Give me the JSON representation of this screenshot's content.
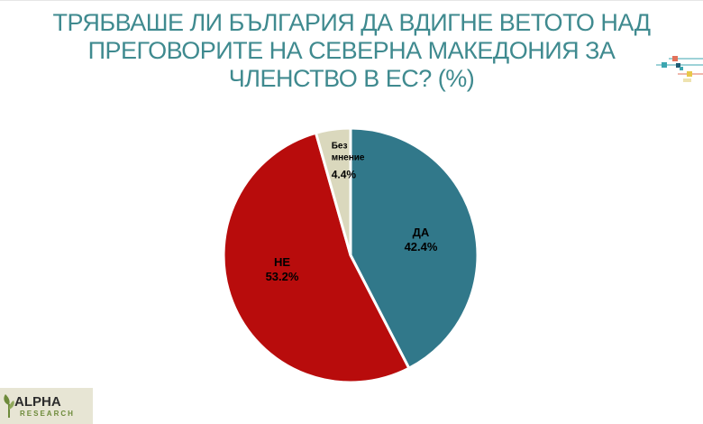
{
  "chart_data": {
    "type": "pie",
    "title": "ТРЯБВАШЕ ЛИ БЪЛГАРИЯ ДА ВДИГНЕ ВЕТОТО НАД ПРЕГОВОРИТЕ НА СЕВЕРНА МАКЕДОНИЯ ЗА ЧЛЕНСТВО В ЕС? (%)",
    "slices": [
      {
        "label": "ДА",
        "value": 42.4,
        "display": "42.4%",
        "color": "#31788a"
      },
      {
        "label": "НЕ",
        "value": 53.2,
        "display": "53.2%",
        "color": "#b80c0c"
      },
      {
        "label": "Без мнение",
        "label_lines": [
          "Без",
          "мнение"
        ],
        "value": 4.4,
        "display": "4.4%",
        "color": "#dad8bd"
      }
    ],
    "start_angle_deg": 0,
    "direction": "clockwise",
    "legend": "none"
  },
  "logo": {
    "name": "ALPHA",
    "subtitle": "RESEARCH",
    "colors": {
      "name": "#2c2c2c",
      "subtitle": "#6d8a3a",
      "background": "#e7e5d4"
    }
  },
  "decoration": {
    "name": "corner-accent",
    "colors": [
      "#e2725b",
      "#3ca6b0",
      "#e8c84a",
      "#1e5b73"
    ]
  },
  "colors": {
    "title": "#3f8a8f",
    "slice_border": "#ffffff"
  }
}
